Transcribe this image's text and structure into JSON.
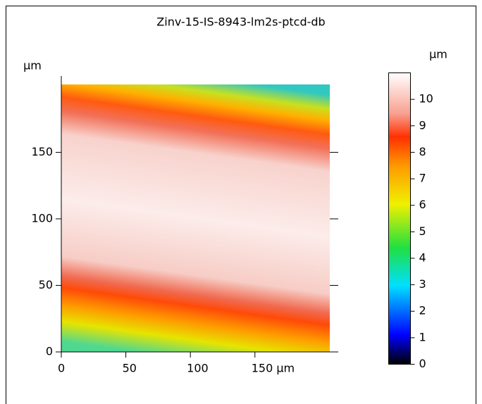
{
  "chart_data": {
    "type": "heatmap",
    "title": "Zinv-15-IS-8943-lm2s-ptcd-db",
    "y_unit": "µm",
    "colorbar_unit": "µm",
    "xlim": [
      0,
      208
    ],
    "ylim": [
      0,
      201
    ],
    "xticks": [
      0,
      50,
      100,
      {
        "value": 150,
        "label": "150 µm"
      }
    ],
    "yticks": [
      0,
      50,
      100,
      150
    ],
    "zlim": [
      0,
      11
    ],
    "zticks": [
      0,
      1,
      2,
      3,
      4,
      5,
      6,
      7,
      8,
      9,
      10
    ]
  }
}
